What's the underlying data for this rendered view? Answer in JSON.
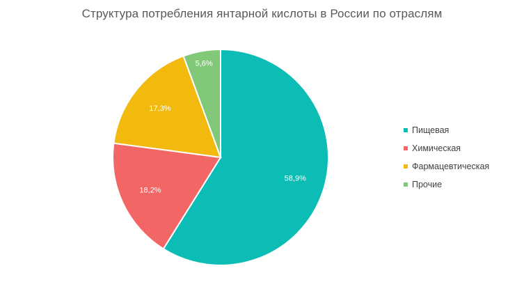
{
  "chart_data": {
    "type": "pie",
    "title": "Структура потребления янтарной кислоты в России по отраслям",
    "categories": [
      "Пищевая",
      "Химическая",
      "Фармацевтическая",
      "Прочие"
    ],
    "values": [
      58.9,
      18.2,
      17.3,
      5.6
    ],
    "data_labels": [
      "58,9%",
      "18,2%",
      "17,3%",
      "5,6%"
    ],
    "colors": [
      "#0bbdb4",
      "#f36666",
      "#f2b90f",
      "#81c878"
    ],
    "legend_position": "right",
    "start_angle": "top, clockwise"
  }
}
